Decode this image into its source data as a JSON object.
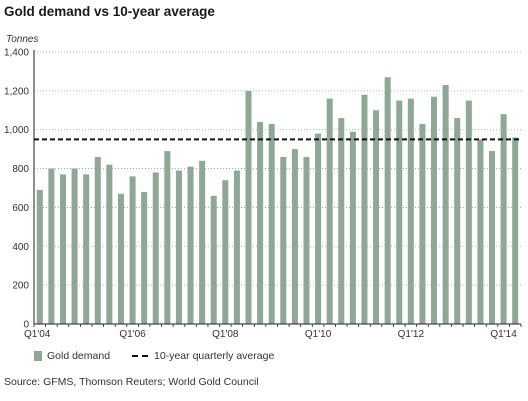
{
  "chart_data": {
    "type": "bar",
    "title": "Gold demand vs 10-year average",
    "ylabel": "Tonnes",
    "ylim": [
      0,
      1400
    ],
    "yticks": [
      "0",
      "200",
      "400",
      "600",
      "800",
      "1,000",
      "1,200",
      "1,400"
    ],
    "x_tick_labels": [
      {
        "index": 0,
        "label": "Q1'04"
      },
      {
        "index": 8,
        "label": "Q1'06"
      },
      {
        "index": 16,
        "label": "Q1'08"
      },
      {
        "index": 24,
        "label": "Q1'10"
      },
      {
        "index": 32,
        "label": "Q1'12"
      },
      {
        "index": 40,
        "label": "Q1'14"
      }
    ],
    "series": [
      {
        "name": "Gold demand",
        "color": "#8fa896",
        "values": [
          690,
          800,
          770,
          800,
          770,
          860,
          820,
          670,
          760,
          680,
          780,
          890,
          790,
          810,
          840,
          660,
          740,
          790,
          1200,
          1040,
          1030,
          860,
          900,
          860,
          980,
          1160,
          1060,
          990,
          1180,
          1100,
          1270,
          1150,
          1160,
          1030,
          1170,
          1230,
          1060,
          1150,
          950,
          890,
          1080,
          960
        ]
      }
    ],
    "reference_line": {
      "name": "10-year quarterly average",
      "value": 950,
      "style": "dashed",
      "color": "#111111"
    },
    "grid": true,
    "legend_position": "bottom-left"
  },
  "source": "Source: GFMS, Thomson Reuters; World Gold Council"
}
